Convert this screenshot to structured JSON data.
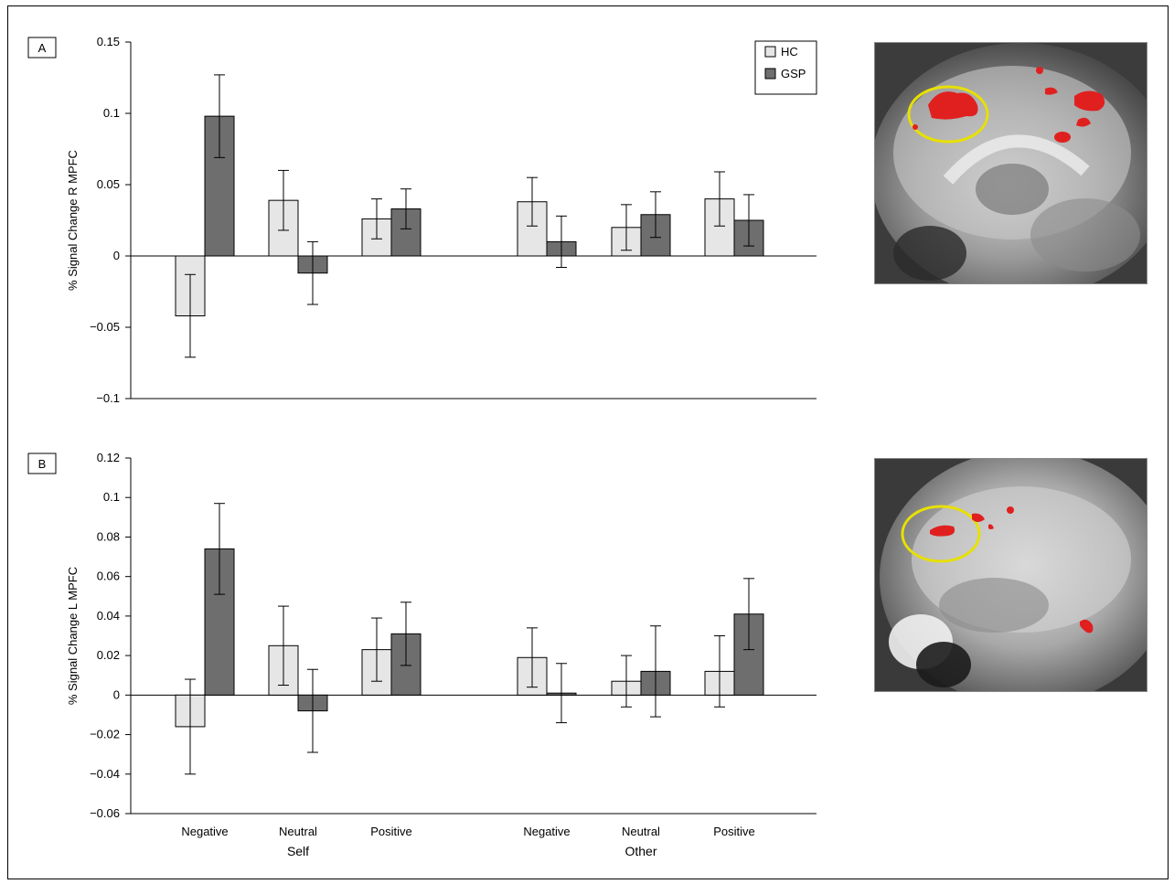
{
  "panels": [
    {
      "label": "A"
    },
    {
      "label": "B"
    }
  ],
  "legend": [
    {
      "name": "HC",
      "color": "#e6e6e6"
    },
    {
      "name": "GSP",
      "color": "#6e6e6e"
    }
  ],
  "x_axis": {
    "categories": [
      "Negative",
      "Neutral",
      "Positive",
      "Negative",
      "Neutral",
      "Positive"
    ],
    "groups": [
      {
        "label": "Self",
        "under": 1
      },
      {
        "label": "Other",
        "under": 4
      }
    ]
  },
  "chart_data": [
    {
      "type": "bar",
      "panel": "A",
      "ylabel": "% Signal Change R MPFC",
      "ylim": [
        -0.1,
        0.15
      ],
      "yticks": [
        -0.1,
        -0.05,
        0,
        0.05,
        0.1,
        0.15
      ],
      "ytick_labels": [
        "−0.1",
        "−0.05",
        "0",
        "0.05",
        "0.1",
        "0.15"
      ],
      "categories": [
        "Negative",
        "Neutral",
        "Positive",
        "Negative",
        "Neutral",
        "Positive"
      ],
      "series": [
        {
          "name": "HC",
          "values": [
            -0.042,
            0.039,
            0.026,
            0.038,
            0.02,
            0.04
          ],
          "errors": [
            0.029,
            0.021,
            0.014,
            0.017,
            0.016,
            0.019
          ]
        },
        {
          "name": "GSP",
          "values": [
            0.098,
            -0.012,
            0.033,
            0.01,
            0.029,
            0.025
          ],
          "errors": [
            0.029,
            0.022,
            0.014,
            0.018,
            0.016,
            0.018
          ]
        }
      ],
      "legend_position": "top-right",
      "grid": false
    },
    {
      "type": "bar",
      "panel": "B",
      "ylabel": "% Signal Change L MPFC",
      "ylim": [
        -0.06,
        0.12
      ],
      "yticks": [
        -0.06,
        -0.04,
        -0.02,
        0,
        0.02,
        0.04,
        0.06,
        0.08,
        0.1,
        0.12
      ],
      "ytick_labels": [
        "−0.06",
        "−0.04",
        "−0.02",
        "0",
        "0.02",
        "0.04",
        "0.06",
        "0.08",
        "0.1",
        "0.12"
      ],
      "categories": [
        "Negative",
        "Neutral",
        "Positive",
        "Negative",
        "Neutral",
        "Positive"
      ],
      "series": [
        {
          "name": "HC",
          "values": [
            -0.016,
            0.025,
            0.023,
            0.019,
            0.007,
            0.012
          ],
          "errors": [
            0.024,
            0.02,
            0.016,
            0.015,
            0.013,
            0.018
          ]
        },
        {
          "name": "GSP",
          "values": [
            0.074,
            -0.008,
            0.031,
            0.001,
            0.012,
            0.041
          ],
          "errors": [
            0.023,
            0.021,
            0.016,
            0.015,
            0.023,
            0.018
          ]
        }
      ],
      "grid": false
    }
  ],
  "images": [
    {
      "name": "brain-scan-right-mpfc",
      "highlight_color": "#e8e000",
      "activation_color": "#e0201f"
    },
    {
      "name": "brain-scan-left-mpfc",
      "highlight_color": "#e8e000",
      "activation_color": "#e0201f"
    }
  ]
}
